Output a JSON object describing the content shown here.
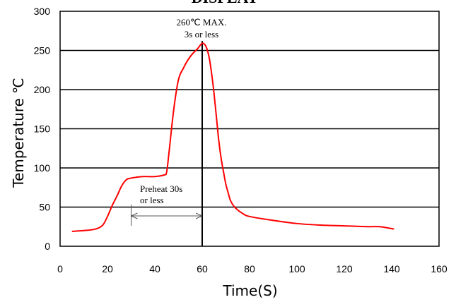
{
  "chart_data": {
    "type": "line",
    "title": "DISPLAY",
    "xlabel": "Time(S)",
    "ylabel": "Temperature ℃",
    "xlim": [
      0,
      160
    ],
    "ylim": [
      0,
      300
    ],
    "x_ticks": [
      0,
      20,
      40,
      60,
      80,
      100,
      120,
      140,
      160
    ],
    "y_ticks": [
      0,
      50,
      100,
      150,
      200,
      250,
      300
    ],
    "grid": {
      "horizontal": true,
      "vertical": false
    },
    "series": [
      {
        "color": "#ff0000",
        "x": [
          5,
          10,
          15,
          18,
          20,
          22,
          24,
          26,
          28,
          30,
          32,
          35,
          40,
          44,
          45,
          46,
          48,
          50,
          52,
          54,
          56,
          58,
          59,
          60,
          61,
          62,
          63,
          64,
          65,
          66,
          67,
          68,
          69,
          70,
          71,
          72,
          74,
          77,
          80,
          90,
          100,
          110,
          120,
          130,
          135,
          141
        ],
        "y": [
          19,
          20,
          22,
          27,
          38,
          52,
          64,
          77,
          85,
          87,
          88,
          89,
          89,
          91,
          95,
          120,
          175,
          213,
          227,
          238,
          246,
          252,
          256,
          259,
          258,
          252,
          240,
          220,
          195,
          165,
          135,
          112,
          95,
          79,
          68,
          58,
          49,
          42,
          38,
          33,
          29,
          27,
          26,
          25,
          25,
          22
        ]
      }
    ],
    "annotations": {
      "peak_line1": "260℃ MAX.",
      "peak_line2": "3s or less",
      "preheat_line1": "Preheat 30s",
      "preheat_line2": "or less"
    },
    "peak_marker_x": 60,
    "preheat_span": [
      30,
      60
    ]
  }
}
